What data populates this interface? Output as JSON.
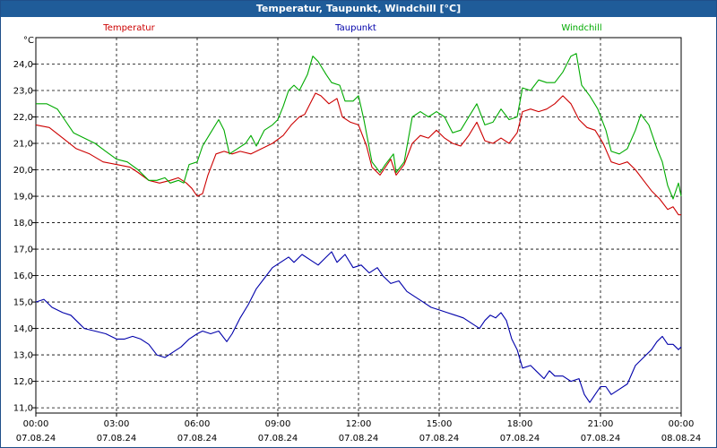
{
  "window": {
    "title": "Temperatur, Taupunkt, Windchill [°C]"
  },
  "chart_data": {
    "type": "line",
    "title": "Temperatur, Taupunkt, Windchill [°C]",
    "ylabel": "°C",
    "ylim": [
      10.8,
      25.0
    ],
    "xlim": [
      0,
      24
    ],
    "grid": true,
    "legend_position": "top",
    "y_ticks": [
      "11,0",
      "12,0",
      "13,0",
      "14,0",
      "15,0",
      "16,0",
      "17,0",
      "18,0",
      "19,0",
      "20,0",
      "21,0",
      "22,0",
      "23,0",
      "24,0"
    ],
    "x_ticks": [
      {
        "time": "00:00",
        "date": "07.08.24"
      },
      {
        "time": "03:00",
        "date": "07.08.24"
      },
      {
        "time": "06:00",
        "date": "07.08.24"
      },
      {
        "time": "09:00",
        "date": "07.08.24"
      },
      {
        "time": "12:00",
        "date": "07.08.24"
      },
      {
        "time": "15:00",
        "date": "07.08.24"
      },
      {
        "time": "18:00",
        "date": "07.08.24"
      },
      {
        "time": "21:00",
        "date": "07.08.24"
      },
      {
        "time": "00:00",
        "date": "08.08.24"
      }
    ],
    "series": [
      {
        "name": "Temperatur",
        "color": "#cc0000",
        "points": [
          [
            0,
            21.7
          ],
          [
            0.5,
            21.6
          ],
          [
            1,
            21.2
          ],
          [
            1.5,
            20.8
          ],
          [
            2,
            20.6
          ],
          [
            2.5,
            20.3
          ],
          [
            3,
            20.2
          ],
          [
            3.5,
            20.1
          ],
          [
            3.8,
            19.9
          ],
          [
            4.2,
            19.6
          ],
          [
            4.6,
            19.5
          ],
          [
            5,
            19.6
          ],
          [
            5.3,
            19.7
          ],
          [
            5.6,
            19.5
          ],
          [
            5.8,
            19.3
          ],
          [
            6,
            19.0
          ],
          [
            6.2,
            19.1
          ],
          [
            6.4,
            19.8
          ],
          [
            6.7,
            20.6
          ],
          [
            7,
            20.7
          ],
          [
            7.3,
            20.6
          ],
          [
            7.6,
            20.7
          ],
          [
            8,
            20.6
          ],
          [
            8.4,
            20.8
          ],
          [
            8.8,
            21.0
          ],
          [
            9.2,
            21.3
          ],
          [
            9.5,
            21.7
          ],
          [
            9.8,
            22.0
          ],
          [
            10,
            22.1
          ],
          [
            10.2,
            22.5
          ],
          [
            10.4,
            22.9
          ],
          [
            10.6,
            22.8
          ],
          [
            10.9,
            22.5
          ],
          [
            11.2,
            22.7
          ],
          [
            11.4,
            22.0
          ],
          [
            11.7,
            21.8
          ],
          [
            12,
            21.7
          ],
          [
            12.3,
            20.9
          ],
          [
            12.5,
            20.1
          ],
          [
            12.8,
            19.8
          ],
          [
            13,
            20.1
          ],
          [
            13.2,
            20.4
          ],
          [
            13.4,
            19.8
          ],
          [
            13.7,
            20.2
          ],
          [
            14,
            21.0
          ],
          [
            14.3,
            21.3
          ],
          [
            14.6,
            21.2
          ],
          [
            14.9,
            21.5
          ],
          [
            15.2,
            21.2
          ],
          [
            15.5,
            21.0
          ],
          [
            15.8,
            20.9
          ],
          [
            16.1,
            21.3
          ],
          [
            16.4,
            21.8
          ],
          [
            16.7,
            21.1
          ],
          [
            17,
            21.0
          ],
          [
            17.3,
            21.2
          ],
          [
            17.6,
            21.0
          ],
          [
            17.9,
            21.4
          ],
          [
            18.1,
            22.2
          ],
          [
            18.4,
            22.3
          ],
          [
            18.7,
            22.2
          ],
          [
            19,
            22.3
          ],
          [
            19.3,
            22.5
          ],
          [
            19.6,
            22.8
          ],
          [
            19.9,
            22.5
          ],
          [
            20.2,
            21.9
          ],
          [
            20.5,
            21.6
          ],
          [
            20.8,
            21.5
          ],
          [
            21.1,
            21.0
          ],
          [
            21.4,
            20.3
          ],
          [
            21.7,
            20.2
          ],
          [
            22,
            20.3
          ],
          [
            22.3,
            20.0
          ],
          [
            22.6,
            19.6
          ],
          [
            22.9,
            19.2
          ],
          [
            23.2,
            18.9
          ],
          [
            23.5,
            18.5
          ],
          [
            23.7,
            18.6
          ],
          [
            23.9,
            18.3
          ],
          [
            24,
            18.3
          ]
        ]
      },
      {
        "name": "Taupunkt",
        "color": "#0000aa",
        "points": [
          [
            0,
            15.0
          ],
          [
            0.3,
            15.1
          ],
          [
            0.6,
            14.8
          ],
          [
            1,
            14.6
          ],
          [
            1.3,
            14.5
          ],
          [
            1.6,
            14.2
          ],
          [
            1.8,
            14.0
          ],
          [
            2.2,
            13.9
          ],
          [
            2.6,
            13.8
          ],
          [
            3,
            13.6
          ],
          [
            3.3,
            13.6
          ],
          [
            3.6,
            13.7
          ],
          [
            3.9,
            13.6
          ],
          [
            4.2,
            13.4
          ],
          [
            4.5,
            13.0
          ],
          [
            4.8,
            12.9
          ],
          [
            5.1,
            13.1
          ],
          [
            5.4,
            13.3
          ],
          [
            5.7,
            13.6
          ],
          [
            6,
            13.8
          ],
          [
            6.2,
            13.9
          ],
          [
            6.5,
            13.8
          ],
          [
            6.8,
            13.9
          ],
          [
            7.1,
            13.5
          ],
          [
            7.3,
            13.8
          ],
          [
            7.6,
            14.4
          ],
          [
            7.9,
            14.9
          ],
          [
            8.2,
            15.5
          ],
          [
            8.5,
            15.9
          ],
          [
            8.8,
            16.3
          ],
          [
            9.1,
            16.5
          ],
          [
            9.4,
            16.7
          ],
          [
            9.6,
            16.5
          ],
          [
            9.9,
            16.8
          ],
          [
            10.2,
            16.6
          ],
          [
            10.5,
            16.4
          ],
          [
            10.8,
            16.7
          ],
          [
            11,
            16.9
          ],
          [
            11.2,
            16.5
          ],
          [
            11.5,
            16.8
          ],
          [
            11.8,
            16.3
          ],
          [
            12.1,
            16.4
          ],
          [
            12.4,
            16.1
          ],
          [
            12.7,
            16.3
          ],
          [
            12.9,
            16.0
          ],
          [
            13.2,
            15.7
          ],
          [
            13.5,
            15.8
          ],
          [
            13.8,
            15.4
          ],
          [
            14.1,
            15.2
          ],
          [
            14.4,
            15.0
          ],
          [
            14.7,
            14.8
          ],
          [
            15,
            14.7
          ],
          [
            15.3,
            14.6
          ],
          [
            15.6,
            14.5
          ],
          [
            15.9,
            14.4
          ],
          [
            16.2,
            14.2
          ],
          [
            16.5,
            14.0
          ],
          [
            16.7,
            14.3
          ],
          [
            16.9,
            14.5
          ],
          [
            17.1,
            14.4
          ],
          [
            17.3,
            14.6
          ],
          [
            17.5,
            14.3
          ],
          [
            17.7,
            13.6
          ],
          [
            17.9,
            13.2
          ],
          [
            18.1,
            12.5
          ],
          [
            18.4,
            12.6
          ],
          [
            18.6,
            12.4
          ],
          [
            18.9,
            12.1
          ],
          [
            19.1,
            12.4
          ],
          [
            19.3,
            12.2
          ],
          [
            19.6,
            12.2
          ],
          [
            19.9,
            12.0
          ],
          [
            20.2,
            12.1
          ],
          [
            20.4,
            11.5
          ],
          [
            20.6,
            11.2
          ],
          [
            20.8,
            11.5
          ],
          [
            21,
            11.8
          ],
          [
            21.2,
            11.8
          ],
          [
            21.4,
            11.5
          ],
          [
            21.7,
            11.7
          ],
          [
            22,
            11.9
          ],
          [
            22.3,
            12.6
          ],
          [
            22.6,
            12.9
          ],
          [
            22.9,
            13.2
          ],
          [
            23.1,
            13.5
          ],
          [
            23.3,
            13.7
          ],
          [
            23.5,
            13.4
          ],
          [
            23.7,
            13.4
          ],
          [
            23.9,
            13.2
          ],
          [
            24,
            13.3
          ]
        ]
      },
      {
        "name": "Windchill",
        "color": "#00aa00",
        "points": [
          [
            0,
            22.5
          ],
          [
            0.4,
            22.5
          ],
          [
            0.8,
            22.3
          ],
          [
            1,
            22.0
          ],
          [
            1.4,
            21.4
          ],
          [
            1.8,
            21.2
          ],
          [
            2.2,
            21.0
          ],
          [
            2.6,
            20.7
          ],
          [
            3,
            20.4
          ],
          [
            3.4,
            20.3
          ],
          [
            3.8,
            20.0
          ],
          [
            4.2,
            19.6
          ],
          [
            4.5,
            19.6
          ],
          [
            4.8,
            19.7
          ],
          [
            5,
            19.5
          ],
          [
            5.3,
            19.6
          ],
          [
            5.5,
            19.5
          ],
          [
            5.7,
            20.2
          ],
          [
            6,
            20.3
          ],
          [
            6.2,
            20.9
          ],
          [
            6.5,
            21.4
          ],
          [
            6.8,
            21.9
          ],
          [
            7,
            21.5
          ],
          [
            7.2,
            20.6
          ],
          [
            7.5,
            20.8
          ],
          [
            7.8,
            21.0
          ],
          [
            8,
            21.3
          ],
          [
            8.2,
            20.9
          ],
          [
            8.5,
            21.5
          ],
          [
            8.8,
            21.7
          ],
          [
            9,
            21.9
          ],
          [
            9.2,
            22.4
          ],
          [
            9.4,
            23.0
          ],
          [
            9.6,
            23.2
          ],
          [
            9.8,
            23.0
          ],
          [
            10.1,
            23.6
          ],
          [
            10.3,
            24.3
          ],
          [
            10.5,
            24.1
          ],
          [
            10.8,
            23.6
          ],
          [
            11,
            23.3
          ],
          [
            11.3,
            23.2
          ],
          [
            11.5,
            22.6
          ],
          [
            11.8,
            22.6
          ],
          [
            12,
            22.8
          ],
          [
            12.2,
            21.9
          ],
          [
            12.5,
            20.3
          ],
          [
            12.8,
            19.9
          ],
          [
            13,
            20.2
          ],
          [
            13.3,
            20.6
          ],
          [
            13.4,
            19.9
          ],
          [
            13.7,
            20.3
          ],
          [
            14,
            22.0
          ],
          [
            14.3,
            22.2
          ],
          [
            14.6,
            22.0
          ],
          [
            14.9,
            22.2
          ],
          [
            15.2,
            22.0
          ],
          [
            15.5,
            21.4
          ],
          [
            15.8,
            21.5
          ],
          [
            16.1,
            22.0
          ],
          [
            16.4,
            22.5
          ],
          [
            16.7,
            21.7
          ],
          [
            17,
            21.8
          ],
          [
            17.3,
            22.3
          ],
          [
            17.6,
            21.9
          ],
          [
            17.9,
            22.0
          ],
          [
            18.1,
            23.1
          ],
          [
            18.4,
            23.0
          ],
          [
            18.7,
            23.4
          ],
          [
            19,
            23.3
          ],
          [
            19.3,
            23.3
          ],
          [
            19.6,
            23.7
          ],
          [
            19.9,
            24.3
          ],
          [
            20.1,
            24.4
          ],
          [
            20.3,
            23.2
          ],
          [
            20.6,
            22.8
          ],
          [
            20.9,
            22.3
          ],
          [
            21.2,
            21.5
          ],
          [
            21.4,
            20.7
          ],
          [
            21.7,
            20.6
          ],
          [
            22,
            20.8
          ],
          [
            22.3,
            21.5
          ],
          [
            22.5,
            22.1
          ],
          [
            22.8,
            21.7
          ],
          [
            23.1,
            20.8
          ],
          [
            23.3,
            20.3
          ],
          [
            23.5,
            19.4
          ],
          [
            23.7,
            18.9
          ],
          [
            23.9,
            19.5
          ],
          [
            24,
            19.0
          ]
        ]
      }
    ]
  }
}
